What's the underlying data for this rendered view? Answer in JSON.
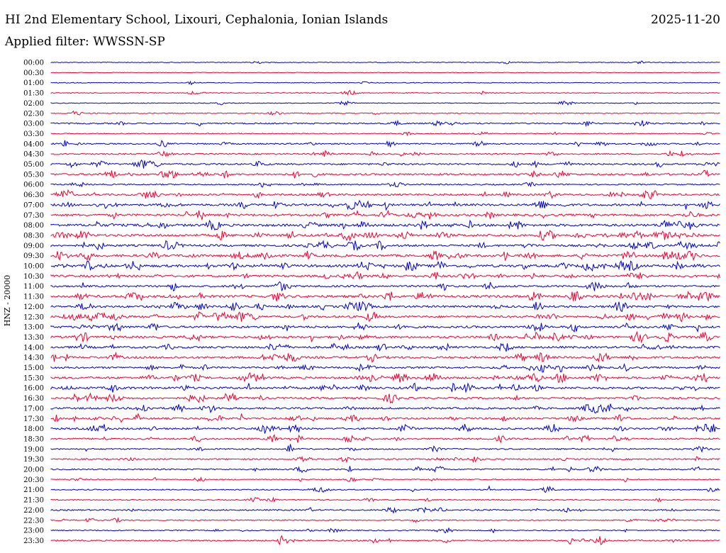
{
  "header": {
    "title": "HI 2nd Elementary School, Lixouri, Cephalonia, Ionian Islands",
    "date": "2025-11-20",
    "filter": "Applied filter: WWSSN-SP"
  },
  "chart_data": {
    "type": "line",
    "ylabel": "HNZ - 20000",
    "row_times": [
      "00:00",
      "00:30",
      "01:00",
      "01:30",
      "02:00",
      "02:30",
      "03:00",
      "03:30",
      "04:00",
      "04:30",
      "05:00",
      "05:30",
      "06:00",
      "06:30",
      "07:00",
      "07:30",
      "08:00",
      "08:30",
      "09:00",
      "09:30",
      "10:00",
      "10:30",
      "11:00",
      "11:30",
      "12:00",
      "12:30",
      "13:00",
      "13:30",
      "14:00",
      "14:30",
      "15:00",
      "15:30",
      "16:00",
      "16:30",
      "17:00",
      "17:30",
      "18:00",
      "18:30",
      "19:00",
      "19:30",
      "20:00",
      "20:30",
      "21:00",
      "21:30",
      "22:00",
      "22:30",
      "23:00",
      "23:30"
    ],
    "series_colors": [
      "#0000cc",
      "#ee0033"
    ],
    "color_pattern": "alternating rows, starting blue",
    "noise_level": [
      1,
      0.3,
      1,
      1,
      1,
      1.5,
      3,
      1.5,
      3,
      3,
      4,
      5,
      3,
      5,
      6,
      6,
      7,
      7,
      6,
      7,
      7,
      6,
      5,
      7,
      6,
      6,
      6,
      6,
      6,
      6,
      5,
      6,
      6,
      5,
      5,
      5,
      5,
      4,
      3,
      3,
      3,
      2,
      2,
      2,
      3,
      2,
      2,
      3
    ]
  }
}
